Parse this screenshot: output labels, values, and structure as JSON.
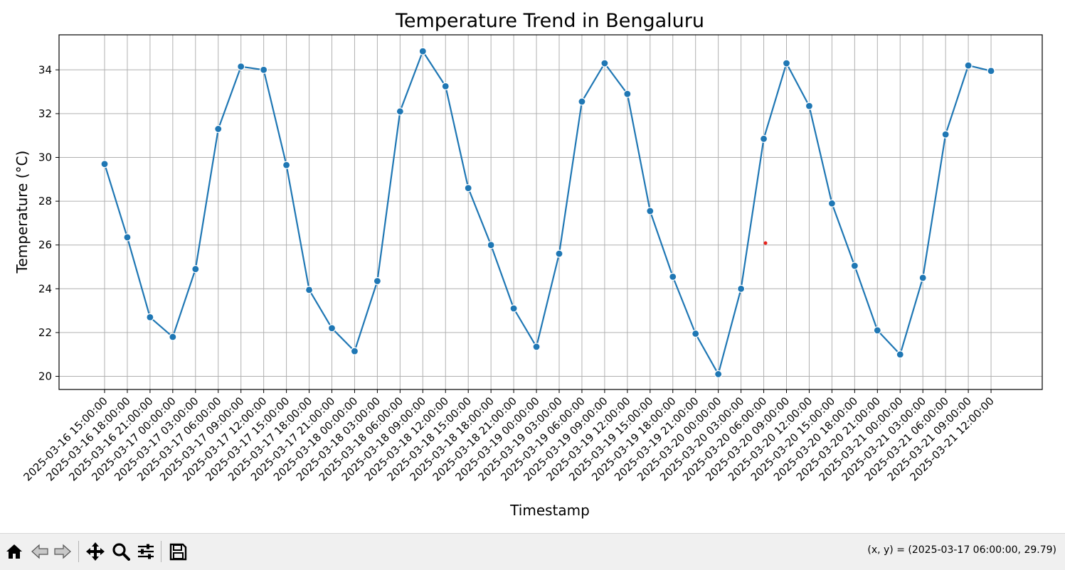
{
  "chart_data": {
    "type": "line",
    "title": "Temperature Trend in Bengaluru",
    "xlabel": "Timestamp",
    "ylabel": "Temperature (°C)",
    "ylim": [
      19.4,
      35.6
    ],
    "yticks": [
      20,
      22,
      24,
      26,
      28,
      30,
      32,
      34
    ],
    "grid": true,
    "line_color": "#1f77b4",
    "x": [
      "2025-03-16 15:00:00",
      "2025-03-16 18:00:00",
      "2025-03-16 21:00:00",
      "2025-03-17 00:00:00",
      "2025-03-17 03:00:00",
      "2025-03-17 06:00:00",
      "2025-03-17 09:00:00",
      "2025-03-17 12:00:00",
      "2025-03-17 15:00:00",
      "2025-03-17 18:00:00",
      "2025-03-17 21:00:00",
      "2025-03-18 00:00:00",
      "2025-03-18 03:00:00",
      "2025-03-18 06:00:00",
      "2025-03-18 09:00:00",
      "2025-03-18 12:00:00",
      "2025-03-18 15:00:00",
      "2025-03-18 18:00:00",
      "2025-03-18 21:00:00",
      "2025-03-19 00:00:00",
      "2025-03-19 03:00:00",
      "2025-03-19 06:00:00",
      "2025-03-19 09:00:00",
      "2025-03-19 12:00:00",
      "2025-03-19 15:00:00",
      "2025-03-19 18:00:00",
      "2025-03-19 21:00:00",
      "2025-03-20 00:00:00",
      "2025-03-20 03:00:00",
      "2025-03-20 06:00:00",
      "2025-03-20 09:00:00",
      "2025-03-20 12:00:00",
      "2025-03-20 15:00:00",
      "2025-03-20 18:00:00",
      "2025-03-20 21:00:00",
      "2025-03-21 00:00:00",
      "2025-03-21 03:00:00",
      "2025-03-21 06:00:00",
      "2025-03-21 09:00:00",
      "2025-03-21 12:00:00"
    ],
    "values": [
      29.7,
      26.35,
      22.7,
      21.8,
      24.9,
      31.3,
      34.15,
      34.0,
      29.65,
      23.95,
      22.2,
      21.15,
      24.35,
      32.1,
      34.85,
      33.25,
      28.6,
      26.0,
      23.1,
      21.35,
      25.6,
      32.55,
      34.3,
      32.9,
      27.55,
      24.55,
      21.95,
      20.1,
      24.0,
      30.85,
      34.3,
      32.35,
      27.9,
      25.05,
      22.1,
      21.0,
      24.5,
      31.05,
      34.2,
      33.95
    ]
  },
  "toolbar": {
    "buttons": [
      {
        "name": "home-icon"
      },
      {
        "name": "back-arrow-icon"
      },
      {
        "name": "forward-arrow-icon"
      },
      {
        "name": "pan-icon"
      },
      {
        "name": "zoom-icon"
      },
      {
        "name": "configure-subplots-icon"
      },
      {
        "name": "save-icon"
      }
    ],
    "coords": "(x, y) = (2025-03-17 06:00:00, 29.79)"
  }
}
